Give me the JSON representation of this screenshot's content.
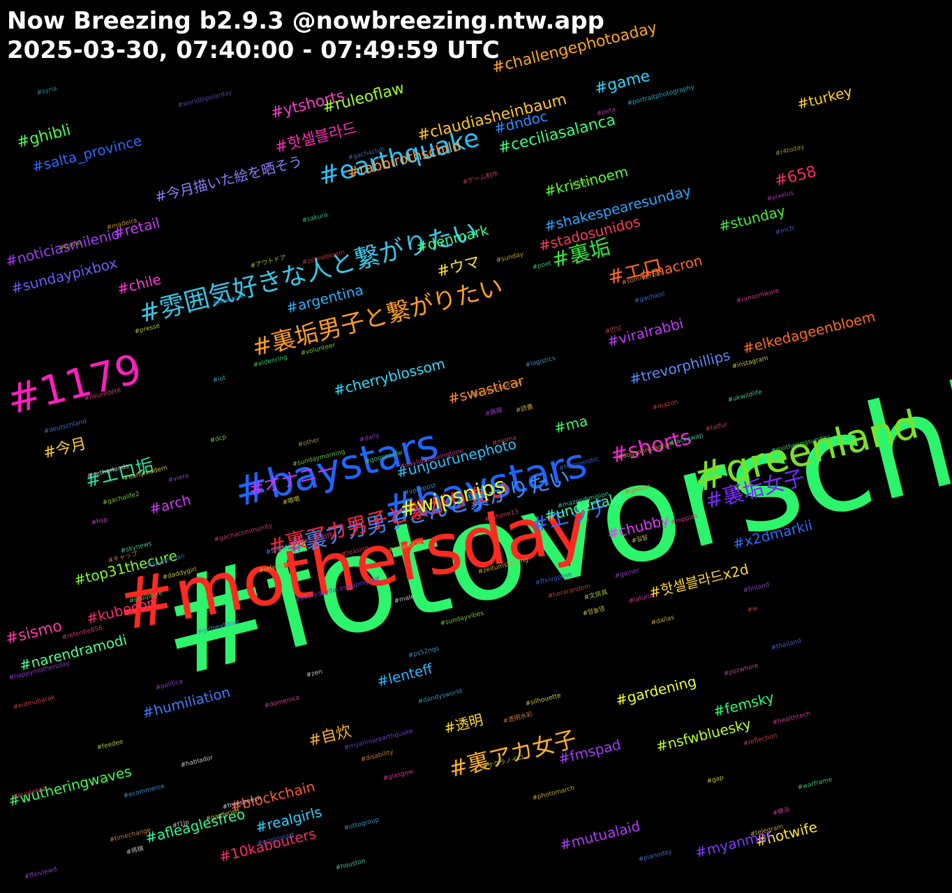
{
  "header": {
    "title_line1": "Now Breezing b2.9.3 @nowbreezing.ntw.app",
    "title_line2": "2025-03-30, 07:40:00 - 07:49:59 UTC"
  },
  "tags": [
    [
      "#fotovorschlag",
      "#2cf56c"
    ],
    [
      "#mothersday",
      "#ff2a1f"
    ],
    [
      "#greenland",
      "#7be126"
    ],
    [
      "#baystars",
      "#1e66ff"
    ],
    [
      "#baystars",
      "#1e66ff"
    ],
    [
      "#1179",
      "#ff1fbf"
    ],
    [
      "#雰囲気好きな人と繋がりたい",
      "#36c7e8"
    ],
    [
      "#裏垢男子と繋がりたい",
      "#ff9e1f"
    ],
    [
      "#裏アカ男子さんと繋がりたい",
      "#3a8dff"
    ],
    [
      "#裏アカ男子と繋がりたい",
      "#ff1f3a"
    ],
    [
      "#裏アカ女子",
      "#ffb21f"
    ],
    [
      "#earthquake",
      "#27c2ff"
    ],
    [
      "#裏垢女子",
      "#7a2aff"
    ],
    [
      "#エッチ",
      "#3366ff"
    ],
    [
      "#shorts",
      "#ff22dd"
    ],
    [
      "#wipsnips",
      "#d4ff3a"
    ],
    [
      "#裏垢",
      "#32e83a"
    ],
    [
      "#エロ",
      "#ff6a1f"
    ],
    [
      "#エロ垢",
      "#25e6a1"
    ],
    [
      "#オナニー",
      "#c436ff"
    ],
    [
      "#challengephotoaday",
      "#ffa51f"
    ],
    [
      "#game",
      "#2ad5ff"
    ],
    [
      "#ytshorts",
      "#ff3dc9"
    ],
    [
      "#ruleoflaw",
      "#a6ff2a"
    ],
    [
      "#turkey",
      "#ffd21f"
    ],
    [
      "#ghibli",
      "#47ff4d"
    ],
    [
      "#dndoc",
      "#2a8dff"
    ],
    [
      "#핫셀블라드",
      "#ff2ab8"
    ],
    [
      "#claudiasheinbaum",
      "#ffc62a"
    ],
    [
      "#ceciliasalanca",
      "#36ff7a"
    ],
    [
      "#salta_province",
      "#2a69ff"
    ],
    [
      "#rabbirothschild",
      "#ff9f3a"
    ],
    [
      "#658",
      "#ff2a65"
    ],
    [
      "#kristinoem",
      "#52ff2a"
    ],
    [
      "#今月描いた絵を晒そう",
      "#8b7dff"
    ],
    [
      "#retail",
      "#c93aff"
    ],
    [
      "#shakespearesunday",
      "#2aa6ff"
    ],
    [
      "#stunday",
      "#3ef23a"
    ],
    [
      "#denmark",
      "#40ff8f"
    ],
    [
      "#stadosunidos",
      "#ff3a5d"
    ],
    [
      "#noticiasmilenio",
      "#a43aff"
    ],
    [
      "#macron",
      "#ff6a2a"
    ],
    [
      "#sundaypixbox",
      "#6a5bff"
    ],
    [
      "#ウマ",
      "#ffe12a"
    ],
    [
      "#chile",
      "#ff3ade"
    ],
    [
      "#argentina",
      "#2ab2ff"
    ],
    [
      "#viralrabbi",
      "#c13aff"
    ],
    [
      "#elkedageenbloem",
      "#ff6a1f"
    ],
    [
      "#trevorphillips",
      "#5a8bff"
    ],
    [
      "#cherryblossom",
      "#2ae0ff"
    ],
    [
      "#swasticar",
      "#ff8c2a"
    ],
    [
      "#今月",
      "#ffcf2a"
    ],
    [
      "#ma",
      "#3aff64"
    ],
    [
      "#unjourunephoto",
      "#2ac6ff"
    ],
    [
      "#arch",
      "#d13aff"
    ],
    [
      "#undertale",
      "#3aff9f"
    ],
    [
      "#x2dmarkii",
      "#2a6dff"
    ],
    [
      "#chubby",
      "#e23aff"
    ],
    [
      "#top31thecure",
      "#7bff2a"
    ],
    [
      "#핫셀블라드x2d",
      "#ffd82a"
    ],
    [
      "#kubecon",
      "#ff2a72"
    ],
    [
      "#sismo",
      "#ff3aa8"
    ],
    [
      "#narendramodi",
      "#4dff8f"
    ],
    [
      "#lenteff",
      "#2ab6ff"
    ],
    [
      "#gardening",
      "#f0ff2a"
    ],
    [
      "#humiliation",
      "#3a7dff"
    ],
    [
      "#nsfwbluesky",
      "#b9ff2a"
    ],
    [
      "#透明",
      "#ffdb2a"
    ],
    [
      "#自炊",
      "#ffb42a"
    ],
    [
      "#femsky",
      "#2aff6f"
    ],
    [
      "#fmspad",
      "#a53aff"
    ],
    [
      "#wutheringwaves",
      "#3aff55"
    ],
    [
      "#blockchain",
      "#ff5a2a"
    ],
    [
      "#afleaglesfreo",
      "#2aff9a"
    ],
    [
      "#realgirls",
      "#2ad2ff"
    ],
    [
      "#hotwife",
      "#ffe82a"
    ],
    [
      "#mutualaid",
      "#b33aff"
    ],
    [
      "#myanmar",
      "#7c3aff"
    ],
    [
      "#10kabouters",
      "#ff2a6e"
    ],
    [
      "#syria",
      "#2a8c9a"
    ],
    [
      "#worldbipolarday",
      "#5a3aa0"
    ],
    [
      "#peta",
      "#a03a8c"
    ],
    [
      "#portraitphotography",
      "#2aa6c0"
    ],
    [
      "#gachaclub",
      "#3a6aa0"
    ],
    [
      "#r4today",
      "#a08c2a"
    ],
    [
      "#ゲーム制作",
      "#c03a5a"
    ],
    [
      "#note",
      "#8ca03a"
    ],
    [
      "#pixelus",
      "#a03aa0"
    ],
    [
      "#madeira",
      "#c08c2a"
    ],
    [
      "#sakura",
      "#2ac080"
    ],
    [
      "#mcfc",
      "#3a5ac0"
    ],
    [
      "#gayai",
      "#8ca03a"
    ],
    [
      "#zonnebloem",
      "#c03a3a"
    ],
    [
      "#sunday",
      "#c0a02a"
    ],
    [
      "#poet",
      "#3ac06a"
    ],
    [
      "#アウトドア",
      "#a0c02a"
    ],
    [
      "#sommerzeit",
      "#c07a3a"
    ],
    [
      "#newyork",
      "#3a8cc0"
    ],
    [
      "#gachaoc",
      "#3a6ac0"
    ],
    [
      "#ransomware",
      "#c03a8c"
    ],
    [
      "#presse",
      "#a0c03a"
    ],
    [
      "#만남",
      "#c03a3a"
    ],
    [
      "#volunteer",
      "#7ac03a"
    ],
    [
      "#eldenring",
      "#3ac06a"
    ],
    [
      "#logistics",
      "#3a8cc0"
    ],
    [
      "#instagram",
      "#c0c03a"
    ],
    [
      "#iot",
      "#3a9ac0"
    ],
    [
      "#heuredété",
      "#c03a6a"
    ],
    [
      "#poppyplaytime",
      "#c07a3a"
    ],
    [
      "#ukwildlife",
      "#3ac08c"
    ],
    [
      "#mazon",
      "#c03a3a"
    ],
    [
      "#踢踢",
      "#8c3ac0"
    ],
    [
      "#読書",
      "#c0a03a"
    ],
    [
      "#fatfur",
      "#c03a5a"
    ],
    [
      "#deutschland",
      "#3a6ac0"
    ],
    [
      "#other",
      "#a08c3a"
    ],
    [
      "#daily",
      "#8c3ac0"
    ],
    [
      "#goosensfw",
      "#3ac07a"
    ],
    [
      "#faceswap",
      "#3ac0a0"
    ],
    [
      "#dcp",
      "#7ac03a"
    ],
    [
      "#sundaymorning",
      "#6ac03a"
    ],
    [
      "#daylightsavingtime",
      "#c03a8c"
    ],
    [
      "#moma",
      "#c03a3a"
    ],
    [
      "#motheringsunday",
      "#3ac06a"
    ],
    [
      "#earlymodern",
      "#c0c03a"
    ],
    [
      "#homoerotic",
      "#3a5ac0"
    ],
    [
      "#嗯嗯",
      "#c0c03a"
    ],
    [
      "#dogsofinstagram",
      "#c0a03a"
    ],
    [
      "#netherlands",
      "#c0c0c0"
    ],
    [
      "#viera",
      "#8c3ac0"
    ],
    [
      "#vprepost",
      "#3a8cc0"
    ],
    [
      "#gposer",
      "#c07a3a"
    ],
    [
      "#mazondimision",
      "#3ac0a0"
    ],
    [
      "#gachalife2",
      "#7ac03a"
    ],
    [
      "#hsp",
      "#c03ac0"
    ],
    [
      "#iphone13",
      "#c03a5a"
    ],
    [
      "#nipples",
      "#c03a8c"
    ],
    [
      "#일탈",
      "#c0c03a"
    ],
    [
      "#gachacommunity",
      "#c03a6a"
    ],
    [
      "#一次創作",
      "#c03a8c"
    ],
    [
      "#skynews",
      "#3ac0a0"
    ],
    [
      "#stilllife",
      "#3a8cc0"
    ],
    [
      "#teasing",
      "#c03a3a"
    ],
    [
      "#spiderman",
      "#3a6ac0"
    ],
    [
      "#swasticars",
      "#a0c03a"
    ],
    [
      "#キャップ",
      "#c07a3a"
    ],
    [
      "#referdle",
      "#c0a03a"
    ],
    [
      "#zeitumstellung",
      "#c0a03a"
    ],
    [
      "#gainer",
      "#8c3ac0"
    ],
    [
      "#daddygirl",
      "#c0c03a"
    ],
    [
      "#ffxivgpose",
      "#3a5ac0"
    ],
    [
      "#everydayifaceswapmyself",
      "#6a3ac0"
    ],
    [
      "#horarandom",
      "#c03a3a"
    ],
    [
      "#文房具",
      "#a0c03a"
    ],
    [
      "#lafuria",
      "#c03a8c"
    ],
    [
      "#sculpture",
      "#3ac06a"
    ],
    [
      "#finland",
      "#8c3ac0"
    ],
    [
      "#male",
      "#c0c0c0"
    ],
    [
      "#맘놀뎀",
      "#c0c03a"
    ],
    [
      "#sundayvibes",
      "#7ac03a"
    ],
    [
      "#dallas",
      "#c0a03a"
    ],
    [
      "#w",
      "#c03a3a"
    ],
    [
      "#referdle856",
      "#c03a6a"
    ],
    [
      "#girlnextdoor",
      "#3a8cc0"
    ],
    [
      "#thailand",
      "#3a5ac0"
    ],
    [
      "#ps52ngs",
      "#3a8cc0"
    ],
    [
      "#zen",
      "#c0c0c0"
    ],
    [
      "#happymothersday",
      "#8c3ac0"
    ],
    [
      "#pozwhore",
      "#c03a8c"
    ],
    [
      "#politica",
      "#8c3ac0"
    ],
    [
      "#eidmubarak",
      "#c03a3a"
    ],
    [
      "#dandysworld",
      "#3a8cc0"
    ],
    [
      "#silhouette",
      "#c0c03a"
    ],
    [
      "#domenica",
      "#c03a8c"
    ],
    [
      "#透明水彩",
      "#c07a3a"
    ],
    [
      "#healthtech",
      "#c03a8c"
    ],
    [
      "#feedee",
      "#a0c03a"
    ],
    [
      "#myanmarearthquake",
      "#6a3ac0"
    ],
    [
      "#reflection",
      "#c03a3a"
    ],
    [
      "#disability",
      "#c07a3a"
    ],
    [
      "#hablador",
      "#c0c0c0"
    ],
    [
      "#サクラノイロ",
      "#a0c03a"
    ],
    [
      "#glasgow",
      "#c03a8c"
    ],
    [
      "#gap",
      "#c0c03a"
    ],
    [
      "#quotebot",
      "#c03a6a"
    ],
    [
      "#ecommerce",
      "#3a8cc0"
    ],
    [
      "#warframe",
      "#3ac06a"
    ],
    [
      "#freespeech",
      "#c0c0c0"
    ],
    [
      "#photomarch",
      "#c0a03a"
    ],
    [
      "#横浜",
      "#c03a8c"
    ],
    [
      "#gayfetish",
      "#c0c03a"
    ],
    [
      "#f1jp",
      "#c0c0c0"
    ],
    [
      "#timechange",
      "#c07a3a"
    ],
    [
      "#ottogroup",
      "#3a8cc0"
    ],
    [
      "#将棋",
      "#c0c0c0"
    ],
    [
      "#originalart",
      "#3a5ac0"
    ],
    [
      "#telegram",
      "#c0a03a"
    ],
    [
      "#pianoday",
      "#3a6ac0"
    ],
    [
      "#houston",
      "#3ac0a0"
    ],
    [
      "#ffxivlewd",
      "#8c3ac0"
    ],
    [
      "#films",
      "#3a5ac0"
    ]
  ]
}
